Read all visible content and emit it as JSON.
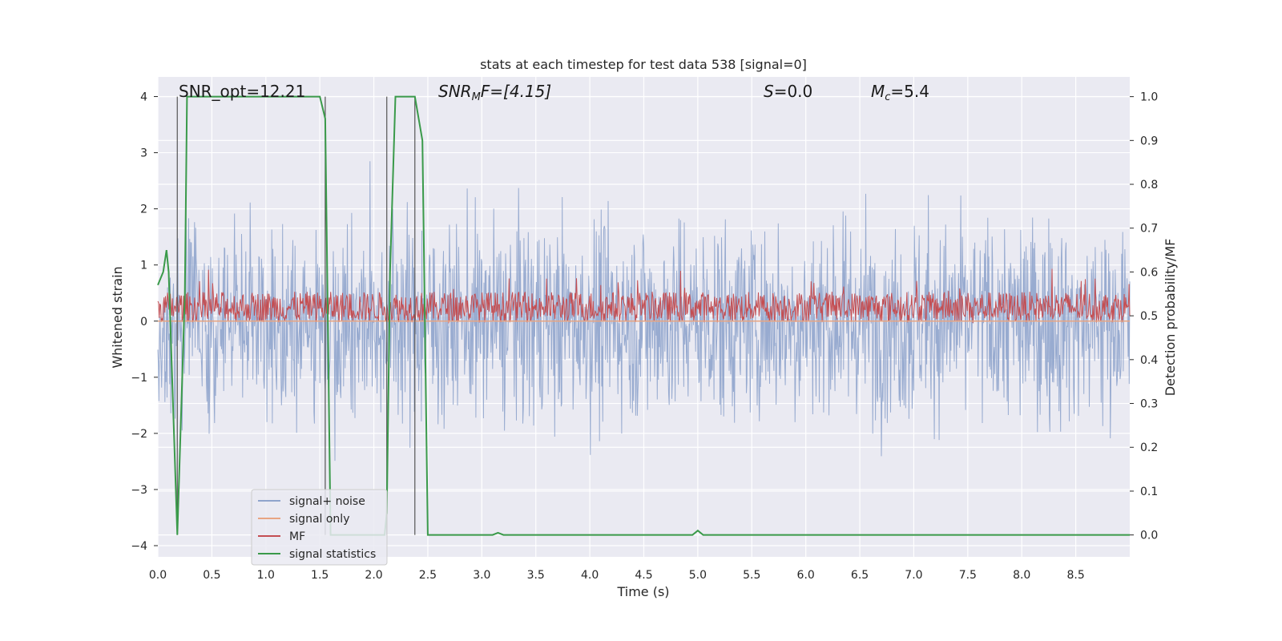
{
  "chart_data": {
    "type": "line",
    "title": "stats at each timestep for test data 538 [signal=0]",
    "xlabel": "Time (s)",
    "ylabel": "Whitened strain",
    "y2label": "Detection probability/MF",
    "xlim": [
      0.0,
      9.0
    ],
    "ylim": [
      -4.2,
      4.35
    ],
    "y2lim": [
      -0.05,
      1.045
    ],
    "xticks": [
      "0.0",
      "0.5",
      "1.0",
      "1.5",
      "2.0",
      "2.5",
      "3.0",
      "3.5",
      "4.0",
      "4.5",
      "5.0",
      "5.5",
      "6.0",
      "6.5",
      "7.0",
      "7.5",
      "8.0",
      "8.5"
    ],
    "yticks": [
      "4",
      "3",
      "2",
      "1",
      "0",
      "−1",
      "−2",
      "−3",
      "−4"
    ],
    "y2ticks": [
      "1.0",
      "0.9",
      "0.8",
      "0.7",
      "0.6",
      "0.5",
      "0.4",
      "0.3",
      "0.2",
      "0.1",
      "0.0"
    ],
    "grid": true,
    "legend_position": "lower-left",
    "annotations": {
      "snr_opt": "SNR_opt=12.21",
      "snr_mf_label": "SNR",
      "snr_mf_sub": "M",
      "snr_mf_rest": "F=[4.15]",
      "s_label": "S",
      "s_rest": "=0.0",
      "mc_label": "M",
      "mc_sub": "c",
      "mc_rest": "=5.4"
    },
    "series": [
      {
        "name": "signal+ noise",
        "color": "#8fa4cc",
        "description_values": "noise amplitude roughly within [-3.7, 3.9]"
      },
      {
        "name": "signal only",
        "color": "#e8a583",
        "values_constant": 0.0
      },
      {
        "name": "MF",
        "color": "#c44e52"
      },
      {
        "name": "signal statistics",
        "color": "#3a9a4a",
        "x": [
          0.0,
          0.05,
          0.08,
          0.1,
          0.18,
          0.25,
          0.27,
          1.5,
          1.55,
          1.6,
          2.1,
          2.12,
          2.15,
          2.2,
          2.38,
          2.45,
          2.5,
          3.0,
          3.1,
          3.15,
          3.2,
          4.95,
          5.0,
          5.05,
          9.0
        ],
        "values": [
          0.57,
          0.6,
          0.65,
          0.6,
          0.0,
          0.55,
          1.0,
          1.0,
          0.95,
          0.0,
          0.0,
          0.05,
          0.6,
          1.0,
          1.0,
          0.9,
          0.0,
          0.0,
          0.0,
          0.005,
          0.0,
          0.0,
          0.01,
          0.0,
          0.0
        ]
      }
    ],
    "vertical_markers_x": [
      0.18,
      1.55,
      2.12,
      2.38
    ]
  }
}
